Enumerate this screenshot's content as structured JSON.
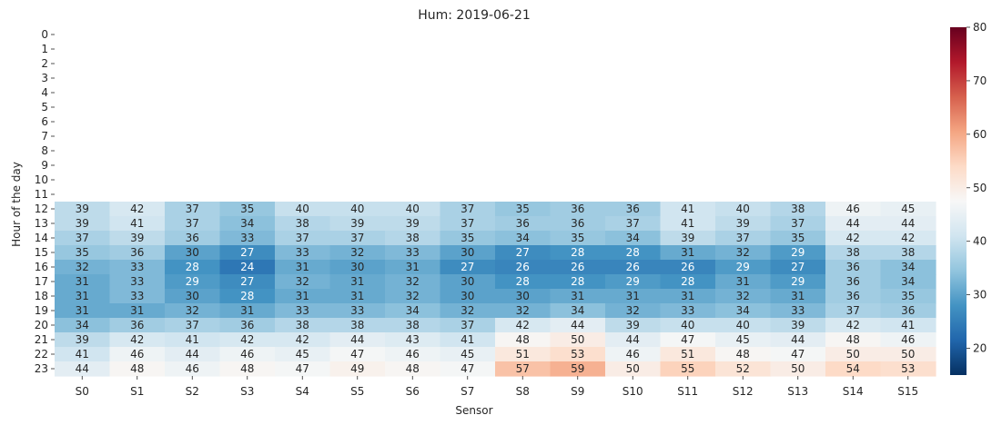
{
  "chart_data": {
    "type": "heatmap",
    "title": "Hum: 2019-06-21",
    "xlabel": "Sensor",
    "ylabel": "Hour of the day",
    "x_categories": [
      "S0",
      "S1",
      "S2",
      "S3",
      "S4",
      "S5",
      "S6",
      "S7",
      "S8",
      "S9",
      "S10",
      "S11",
      "S12",
      "S13",
      "S14",
      "S15"
    ],
    "y_categories": [
      "0",
      "1",
      "2",
      "3",
      "4",
      "5",
      "6",
      "7",
      "8",
      "9",
      "10",
      "11",
      "12",
      "13",
      "14",
      "15",
      "16",
      "17",
      "18",
      "19",
      "20",
      "21",
      "22",
      "23"
    ],
    "values": [
      [
        null,
        null,
        null,
        null,
        null,
        null,
        null,
        null,
        null,
        null,
        null,
        null,
        null,
        null,
        null,
        null
      ],
      [
        null,
        null,
        null,
        null,
        null,
        null,
        null,
        null,
        null,
        null,
        null,
        null,
        null,
        null,
        null,
        null
      ],
      [
        null,
        null,
        null,
        null,
        null,
        null,
        null,
        null,
        null,
        null,
        null,
        null,
        null,
        null,
        null,
        null
      ],
      [
        null,
        null,
        null,
        null,
        null,
        null,
        null,
        null,
        null,
        null,
        null,
        null,
        null,
        null,
        null,
        null
      ],
      [
        null,
        null,
        null,
        null,
        null,
        null,
        null,
        null,
        null,
        null,
        null,
        null,
        null,
        null,
        null,
        null
      ],
      [
        null,
        null,
        null,
        null,
        null,
        null,
        null,
        null,
        null,
        null,
        null,
        null,
        null,
        null,
        null,
        null
      ],
      [
        null,
        null,
        null,
        null,
        null,
        null,
        null,
        null,
        null,
        null,
        null,
        null,
        null,
        null,
        null,
        null
      ],
      [
        null,
        null,
        null,
        null,
        null,
        null,
        null,
        null,
        null,
        null,
        null,
        null,
        null,
        null,
        null,
        null
      ],
      [
        null,
        null,
        null,
        null,
        null,
        null,
        null,
        null,
        null,
        null,
        null,
        null,
        null,
        null,
        null,
        null
      ],
      [
        null,
        null,
        null,
        null,
        null,
        null,
        null,
        null,
        null,
        null,
        null,
        null,
        null,
        null,
        null,
        null
      ],
      [
        null,
        null,
        null,
        null,
        null,
        null,
        null,
        null,
        null,
        null,
        null,
        null,
        null,
        null,
        null,
        null
      ],
      [
        null,
        null,
        null,
        null,
        null,
        null,
        null,
        null,
        null,
        null,
        null,
        null,
        null,
        null,
        null,
        null
      ],
      [
        39,
        42,
        37,
        35,
        40,
        40,
        40,
        37,
        35,
        36,
        36,
        41,
        40,
        38,
        46,
        45
      ],
      [
        39,
        41,
        37,
        34,
        38,
        39,
        39,
        37,
        36,
        36,
        37,
        41,
        39,
        37,
        44,
        44
      ],
      [
        37,
        39,
        36,
        33,
        37,
        37,
        38,
        35,
        34,
        35,
        34,
        39,
        37,
        35,
        42,
        42
      ],
      [
        35,
        36,
        30,
        27,
        33,
        32,
        33,
        30,
        27,
        28,
        28,
        31,
        32,
        29,
        38,
        38
      ],
      [
        32,
        33,
        28,
        24,
        31,
        30,
        31,
        27,
        26,
        26,
        26,
        26,
        29,
        27,
        36,
        34
      ],
      [
        31,
        33,
        29,
        27,
        32,
        31,
        32,
        30,
        28,
        28,
        29,
        28,
        31,
        29,
        36,
        34
      ],
      [
        31,
        33,
        30,
        28,
        31,
        31,
        32,
        30,
        30,
        31,
        31,
        31,
        32,
        31,
        36,
        35
      ],
      [
        31,
        31,
        32,
        31,
        33,
        33,
        34,
        32,
        32,
        34,
        32,
        33,
        34,
        33,
        37,
        36
      ],
      [
        34,
        36,
        37,
        36,
        38,
        38,
        38,
        37,
        42,
        44,
        39,
        40,
        40,
        39,
        42,
        41
      ],
      [
        39,
        42,
        41,
        42,
        42,
        44,
        43,
        41,
        48,
        50,
        44,
        47,
        45,
        44,
        48,
        46
      ],
      [
        41,
        46,
        44,
        46,
        45,
        47,
        46,
        45,
        51,
        53,
        46,
        51,
        48,
        47,
        50,
        50
      ],
      [
        44,
        48,
        46,
        48,
        47,
        49,
        48,
        47,
        57,
        59,
        50,
        55,
        52,
        50,
        54,
        53
      ]
    ],
    "colormap": "RdBu_r",
    "vmin": 15,
    "vmax": 80,
    "colorbar_ticks": [
      20,
      30,
      40,
      50,
      60,
      70,
      80
    ],
    "annotations": true
  }
}
